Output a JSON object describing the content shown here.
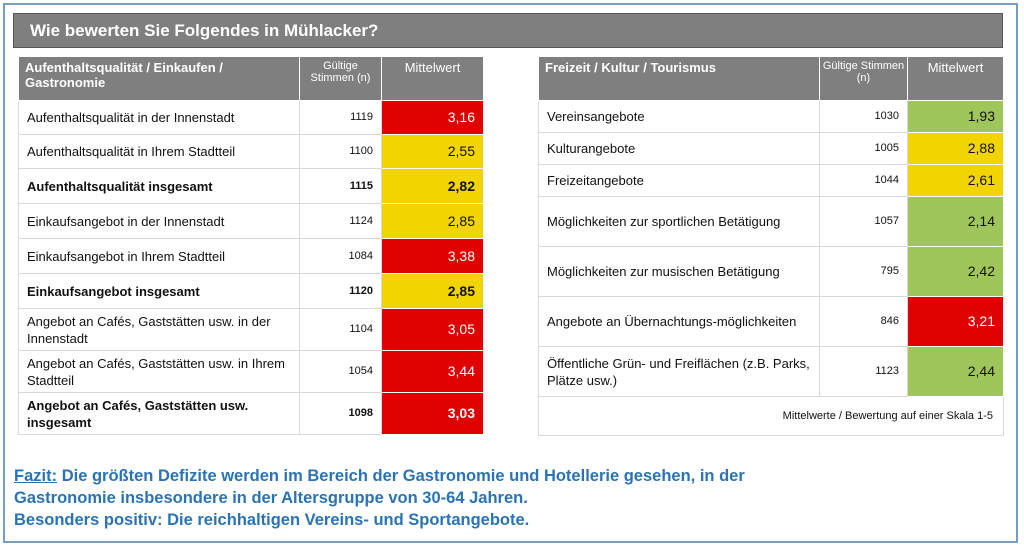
{
  "title": "Wie bewerten Sie Folgendes in Mühlacker?",
  "colors": {
    "red": "#e00000",
    "yellow": "#f2d400",
    "green": "#9fc65a",
    "header_grey": "#7f7f7f",
    "fazit_blue": "#2a73b6"
  },
  "left_table": {
    "header_label": "Aufenthaltsqualität / Einkaufen / Gastronomie",
    "header_n": "Gültige Stimmen (n)",
    "header_mean": "Mittelwert",
    "rows": [
      {
        "label": "Aufenthaltsqualität in der Innenstadt",
        "n": "1119",
        "mean": "3,16",
        "color": "red",
        "bold": false
      },
      {
        "label": "Aufenthaltsqualität in Ihrem Stadtteil",
        "n": "1100",
        "mean": "2,55",
        "color": "yellow",
        "bold": false
      },
      {
        "label": "Aufenthaltsqualität insgesamt",
        "n": "1115",
        "mean": "2,82",
        "color": "yellow",
        "bold": true
      },
      {
        "label": "Einkaufsangebot in der Innenstadt",
        "n": "1124",
        "mean": "2,85",
        "color": "yellow",
        "bold": false
      },
      {
        "label": "Einkaufsangebot in Ihrem Stadtteil",
        "n": "1084",
        "mean": "3,38",
        "color": "red",
        "bold": false
      },
      {
        "label": "Einkaufsangebot insgesamt",
        "n": "1120",
        "mean": "2,85",
        "color": "yellow",
        "bold": true
      },
      {
        "label": "Angebot an Cafés, Gaststätten usw. in der Innenstadt",
        "n": "1104",
        "mean": "3,05",
        "color": "red",
        "bold": false
      },
      {
        "label": "Angebot an Cafés, Gaststätten usw. in Ihrem Stadtteil",
        "n": "1054",
        "mean": "3,44",
        "color": "red",
        "bold": false
      },
      {
        "label": "Angebot an Cafés, Gaststätten usw. insgesamt",
        "n": "1098",
        "mean": "3,03",
        "color": "red",
        "bold": true
      }
    ]
  },
  "right_table": {
    "header_label": "Freizeit / Kultur / Tourismus",
    "header_n": "Gültige Stimmen (n)",
    "header_mean": "Mittelwert",
    "rows": [
      {
        "label": "Vereinsangebote",
        "n": "1030",
        "mean": "1,93",
        "color": "green",
        "bold": false
      },
      {
        "label": "Kulturangebote",
        "n": "1005",
        "mean": "2,88",
        "color": "yellow",
        "bold": false
      },
      {
        "label": "Freizeitangebote",
        "n": "1044",
        "mean": "2,61",
        "color": "yellow",
        "bold": false
      },
      {
        "label": "Möglichkeiten zur sportlichen Betätigung",
        "n": "1057",
        "mean": "2,14",
        "color": "green",
        "bold": false
      },
      {
        "label": "Möglichkeiten zur musischen Betätigung",
        "n": "795",
        "mean": "2,42",
        "color": "green",
        "bold": false
      },
      {
        "label": "Angebote an Übernachtungs-möglichkeiten",
        "n": "846",
        "mean": "3,21",
        "color": "red",
        "bold": false
      },
      {
        "label": "Öffentliche Grün- und Freiflächen (z.B. Parks, Plätze usw.)",
        "n": "1123",
        "mean": "2,44",
        "color": "green",
        "bold": false
      }
    ],
    "footnote": "Mittelwerte / Bewertung auf einer Skala 1-5"
  },
  "fazit": {
    "label": "Fazit:",
    "line1": "Die größten Defizite werden im Bereich der Gastronomie und Hotellerie gesehen, in der",
    "line2": "Gastronomie insbesondere in der Altersgruppe von 30-64 Jahren.",
    "line3": "Besonders positiv: Die reichhaltigen Vereins- und Sportangebote."
  },
  "chart_data": [
    {
      "type": "table",
      "title": "Wie bewerten Sie Folgendes in Mühlacker?",
      "group": "Aufenthaltsqualität / Einkaufen / Gastronomie",
      "columns": [
        "Gültige Stimmen (n)",
        "Mittelwert"
      ],
      "categories": [
        "Aufenthaltsqualität in der Innenstadt",
        "Aufenthaltsqualität in Ihrem Stadtteil",
        "Aufenthaltsqualität insgesamt",
        "Einkaufsangebot in der Innenstadt",
        "Einkaufsangebot in Ihrem Stadtteil",
        "Einkaufsangebot insgesamt",
        "Angebot an Cafés, Gaststätten usw. in der Innenstadt",
        "Angebot an Cafés, Gaststätten usw. in Ihrem Stadtteil",
        "Angebot an Cafés, Gaststätten usw. insgesamt"
      ],
      "n": [
        1119,
        1100,
        1115,
        1124,
        1084,
        1120,
        1104,
        1054,
        1098
      ],
      "values": [
        3.16,
        2.55,
        2.82,
        2.85,
        3.38,
        2.85,
        3.05,
        3.44,
        3.03
      ]
    },
    {
      "type": "table",
      "group": "Freizeit / Kultur / Tourismus",
      "columns": [
        "Gültige Stimmen (n)",
        "Mittelwert"
      ],
      "categories": [
        "Vereinsangebote",
        "Kulturangebote",
        "Freizeitangebote",
        "Möglichkeiten zur sportlichen Betätigung",
        "Möglichkeiten zur musischen Betätigung",
        "Angebote an Übernachtungs-möglichkeiten",
        "Öffentliche Grün- und Freiflächen (z.B. Parks, Plätze usw.)"
      ],
      "n": [
        1030,
        1005,
        1044,
        1057,
        795,
        846,
        1123
      ],
      "values": [
        1.93,
        2.88,
        2.61,
        2.14,
        2.42,
        3.21,
        2.44
      ]
    }
  ]
}
